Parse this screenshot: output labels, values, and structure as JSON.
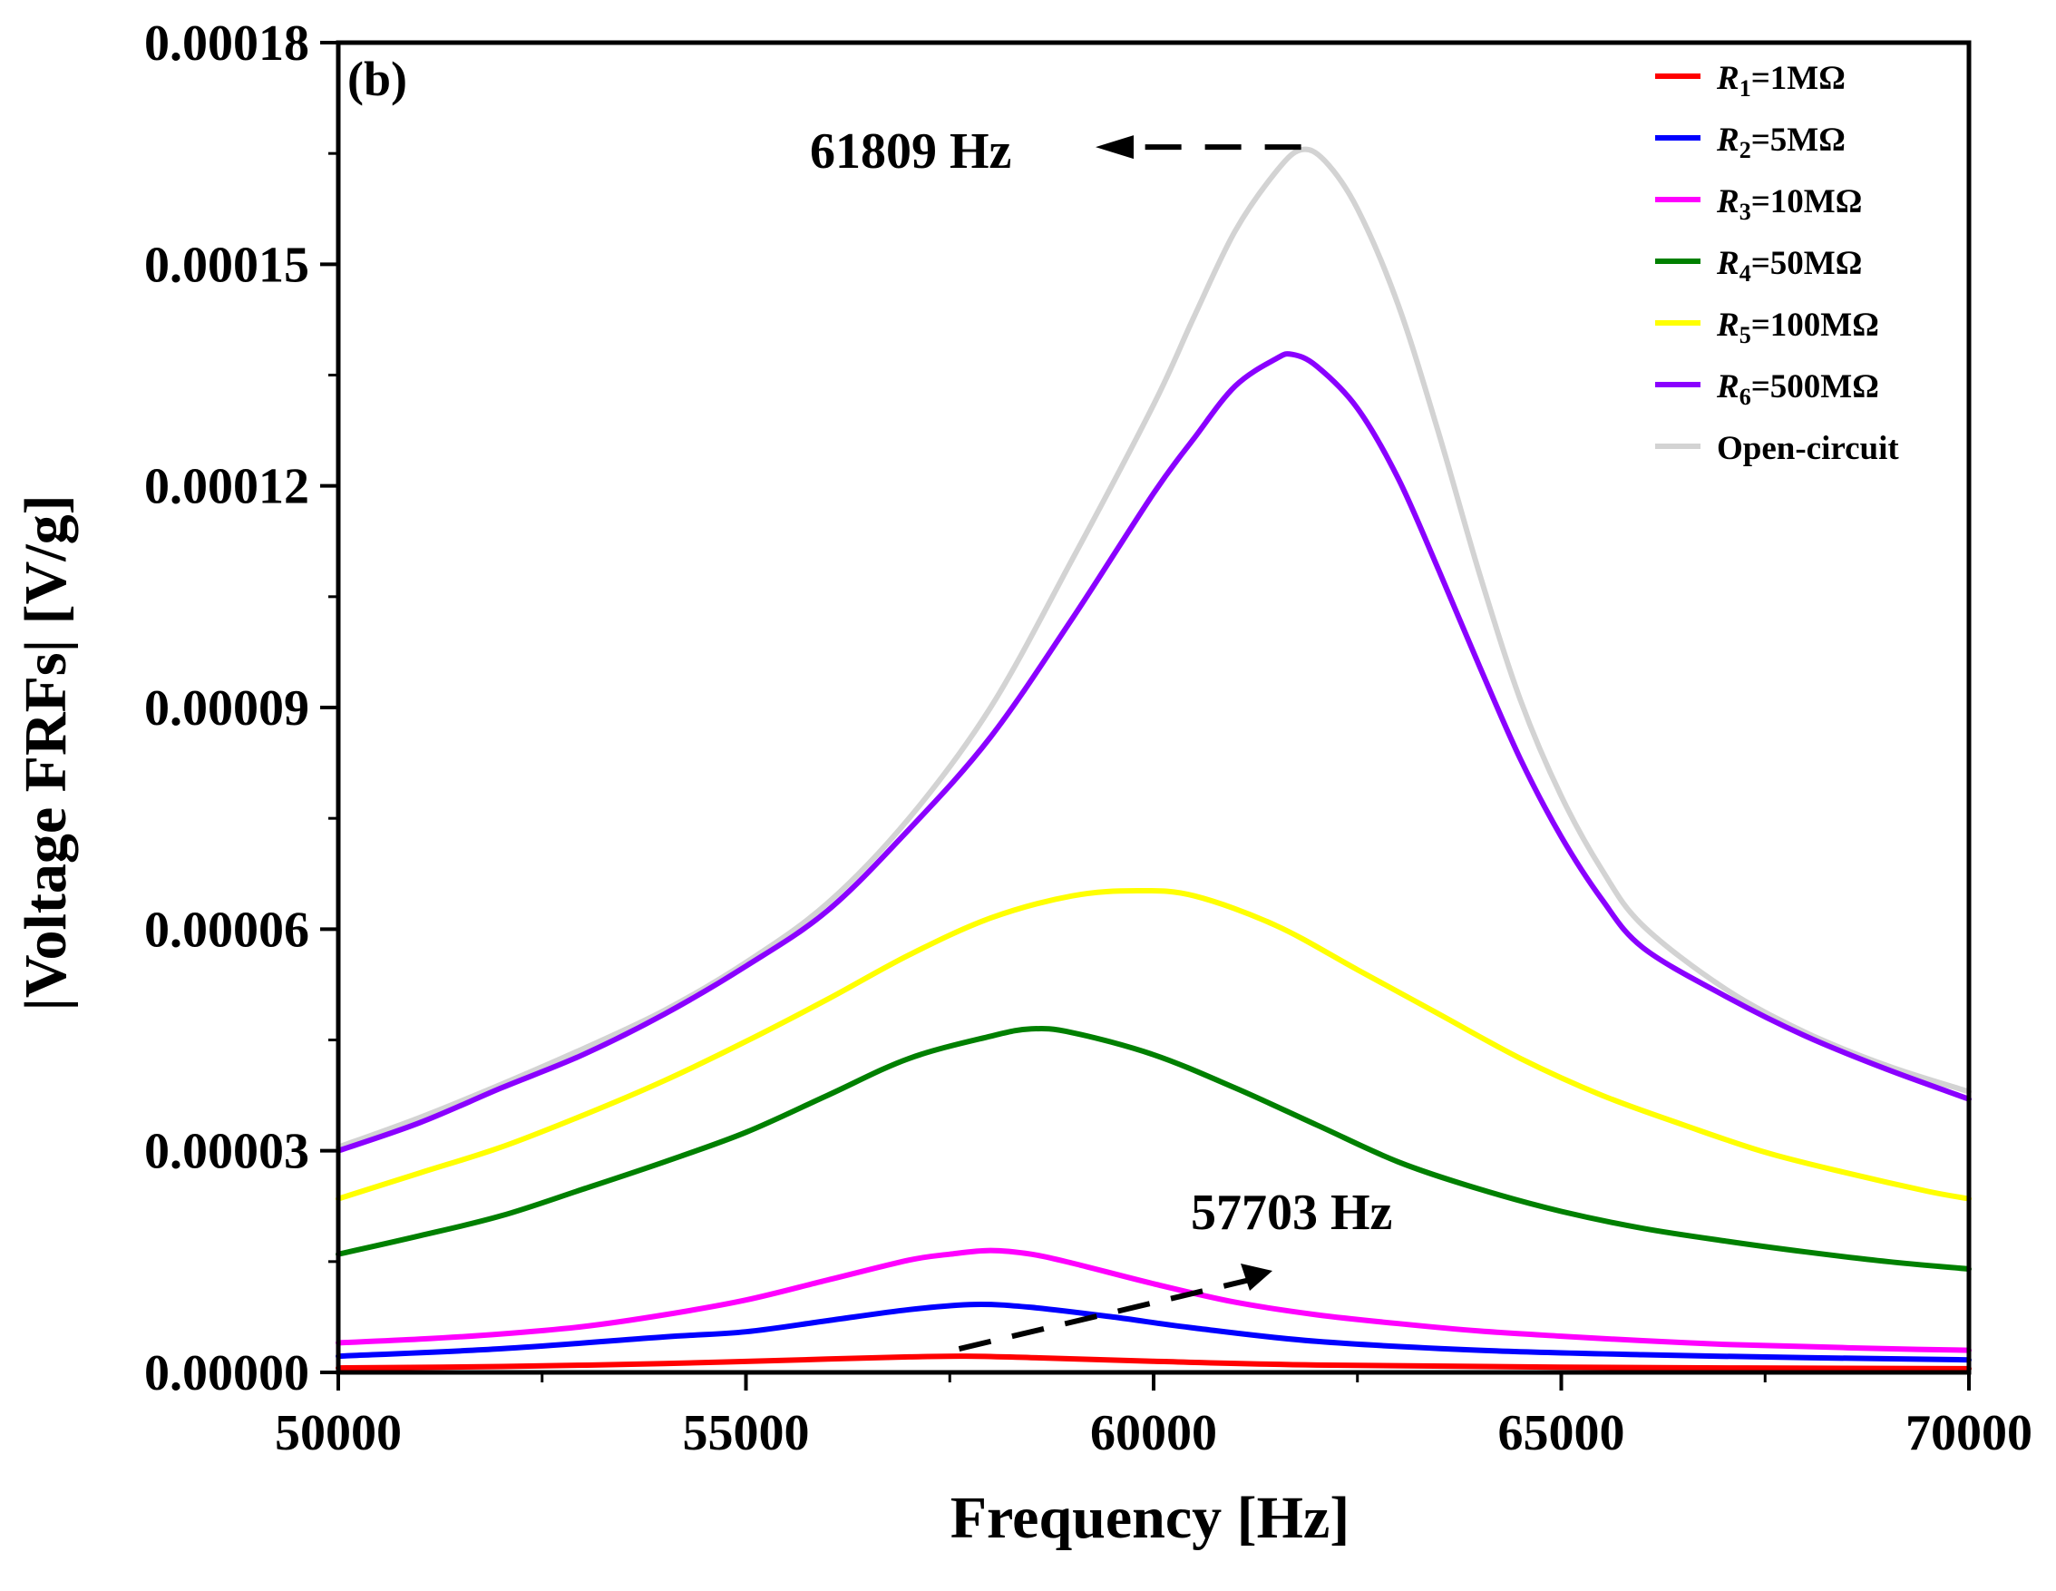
{
  "chart_data": {
    "type": "line",
    "panel_label": "(b)",
    "xlabel": "Frequency [Hz]",
    "ylabel": "|Voltage FRFs| [V/g]",
    "xlim": [
      50000,
      70000
    ],
    "ylim": [
      0,
      0.00018
    ],
    "xticks": [
      50000,
      55000,
      60000,
      65000,
      70000
    ],
    "xtick_labels": [
      "50000",
      "55000",
      "60000",
      "65000",
      "70000"
    ],
    "yticks": [
      0,
      3e-05,
      6e-05,
      9e-05,
      0.00012,
      0.00015,
      0.00018
    ],
    "ytick_labels": [
      "0.00000",
      "0.00003",
      "0.00006",
      "0.00009",
      "0.00012",
      "0.00015",
      "0.00018"
    ],
    "legend_position": "top-right",
    "series": [
      {
        "sym": "R",
        "sub": "1",
        "rest": "=1MΩ",
        "color": "#ff0000",
        "points": [
          [
            50000,
            6e-07
          ],
          [
            52000,
            8e-07
          ],
          [
            54000,
            1.2e-06
          ],
          [
            56000,
            1.8e-06
          ],
          [
            57000,
            2.1e-06
          ],
          [
            57703,
            2.2e-06
          ],
          [
            58500,
            2e-06
          ],
          [
            60000,
            1.5e-06
          ],
          [
            62000,
            1e-06
          ],
          [
            65000,
            7e-07
          ],
          [
            70000,
            5e-07
          ]
        ]
      },
      {
        "sym": "R",
        "sub": "2",
        "rest": "=5MΩ",
        "color": "#0000ff",
        "points": [
          [
            50000,
            2.2e-06
          ],
          [
            52000,
            3.2e-06
          ],
          [
            54000,
            4.8e-06
          ],
          [
            55000,
            5.5e-06
          ],
          [
            56000,
            7e-06
          ],
          [
            57000,
            8.5e-06
          ],
          [
            57800,
            9.2e-06
          ],
          [
            58500,
            8.8e-06
          ],
          [
            59500,
            7.5e-06
          ],
          [
            60500,
            6e-06
          ],
          [
            62000,
            4.2e-06
          ],
          [
            64000,
            3e-06
          ],
          [
            66000,
            2.4e-06
          ],
          [
            68000,
            2e-06
          ],
          [
            70000,
            1.7e-06
          ]
        ]
      },
      {
        "sym": "R",
        "sub": "3",
        "rest": "=10MΩ",
        "color": "#ff00ff",
        "points": [
          [
            50000,
            4e-06
          ],
          [
            51000,
            4.5e-06
          ],
          [
            52000,
            5.2e-06
          ],
          [
            53000,
            6.2e-06
          ],
          [
            54000,
            7.8e-06
          ],
          [
            55000,
            9.8e-06
          ],
          [
            56000,
            1.25e-05
          ],
          [
            57000,
            1.52e-05
          ],
          [
            57500,
            1.6e-05
          ],
          [
            58000,
            1.65e-05
          ],
          [
            58500,
            1.6e-05
          ],
          [
            59000,
            1.48e-05
          ],
          [
            60000,
            1.2e-05
          ],
          [
            61000,
            9.5e-06
          ],
          [
            62000,
            7.8e-06
          ],
          [
            63000,
            6.6e-06
          ],
          [
            64000,
            5.6e-06
          ],
          [
            65000,
            4.9e-06
          ],
          [
            66000,
            4.3e-06
          ],
          [
            67000,
            3.8e-06
          ],
          [
            68000,
            3.5e-06
          ],
          [
            69000,
            3.2e-06
          ],
          [
            70000,
            3e-06
          ]
        ]
      },
      {
        "sym": "R",
        "sub": "4",
        "rest": "=50MΩ",
        "color": "#008000",
        "points": [
          [
            50000,
            1.6e-05
          ],
          [
            51000,
            1.85e-05
          ],
          [
            52000,
            2.12e-05
          ],
          [
            53000,
            2.48e-05
          ],
          [
            54000,
            2.85e-05
          ],
          [
            55000,
            3.25e-05
          ],
          [
            56000,
            3.75e-05
          ],
          [
            57000,
            4.25e-05
          ],
          [
            58000,
            4.55e-05
          ],
          [
            58500,
            4.65e-05
          ],
          [
            59000,
            4.6e-05
          ],
          [
            60000,
            4.3e-05
          ],
          [
            61000,
            3.85e-05
          ],
          [
            62000,
            3.35e-05
          ],
          [
            63000,
            2.85e-05
          ],
          [
            64000,
            2.48e-05
          ],
          [
            65000,
            2.18e-05
          ],
          [
            66000,
            1.95e-05
          ],
          [
            67000,
            1.78e-05
          ],
          [
            68000,
            1.63e-05
          ],
          [
            69000,
            1.5e-05
          ],
          [
            70000,
            1.4e-05
          ]
        ]
      },
      {
        "sym": "R",
        "sub": "5",
        "rest": "=100MΩ",
        "color": "#ffff00",
        "points": [
          [
            50000,
            2.35e-05
          ],
          [
            51000,
            2.7e-05
          ],
          [
            52000,
            3.05e-05
          ],
          [
            53000,
            3.48e-05
          ],
          [
            54000,
            3.95e-05
          ],
          [
            55000,
            4.48e-05
          ],
          [
            56000,
            5.05e-05
          ],
          [
            57000,
            5.65e-05
          ],
          [
            58000,
            6.15e-05
          ],
          [
            59000,
            6.45e-05
          ],
          [
            59800,
            6.52e-05
          ],
          [
            60500,
            6.45e-05
          ],
          [
            61500,
            6.05e-05
          ],
          [
            62500,
            5.45e-05
          ],
          [
            63500,
            4.85e-05
          ],
          [
            64500,
            4.25e-05
          ],
          [
            65500,
            3.75e-05
          ],
          [
            66500,
            3.35e-05
          ],
          [
            67500,
            2.98e-05
          ],
          [
            68500,
            2.7e-05
          ],
          [
            69500,
            2.45e-05
          ],
          [
            70000,
            2.35e-05
          ]
        ]
      },
      {
        "sym": "R",
        "sub": "6",
        "rest": "=500MΩ",
        "color": "#8a00ff",
        "points": [
          [
            50000,
            3e-05
          ],
          [
            51000,
            3.38e-05
          ],
          [
            52000,
            3.85e-05
          ],
          [
            53000,
            4.3e-05
          ],
          [
            54000,
            4.85e-05
          ],
          [
            55000,
            5.5e-05
          ],
          [
            56000,
            6.25e-05
          ],
          [
            57000,
            7.35e-05
          ],
          [
            58000,
            8.6e-05
          ],
          [
            59000,
            0.000102
          ],
          [
            60000,
            0.000119
          ],
          [
            60500,
            0.0001265
          ],
          [
            61000,
            0.0001335
          ],
          [
            61500,
            0.0001372
          ],
          [
            61700,
            0.0001378
          ],
          [
            62000,
            0.0001362
          ],
          [
            62500,
            0.0001305
          ],
          [
            63000,
            0.000121
          ],
          [
            63500,
            0.0001085
          ],
          [
            64000,
            9.55e-05
          ],
          [
            64500,
            8.3e-05
          ],
          [
            65000,
            7.25e-05
          ],
          [
            65500,
            6.4e-05
          ],
          [
            66000,
            5.75e-05
          ],
          [
            67000,
            5.1e-05
          ],
          [
            68000,
            4.55e-05
          ],
          [
            69000,
            4.1e-05
          ],
          [
            70000,
            3.7e-05
          ]
        ]
      },
      {
        "sym": "",
        "sub": "",
        "rest": "Open-circuit",
        "color": "#d3d3d3",
        "points": [
          [
            50000,
            3.05e-05
          ],
          [
            51000,
            3.45e-05
          ],
          [
            52000,
            3.9e-05
          ],
          [
            53000,
            4.38e-05
          ],
          [
            54000,
            4.9e-05
          ],
          [
            55000,
            5.55e-05
          ],
          [
            56000,
            6.35e-05
          ],
          [
            57000,
            7.5e-05
          ],
          [
            58000,
            9e-05
          ],
          [
            59000,
            0.00011
          ],
          [
            60000,
            0.000131
          ],
          [
            60500,
            0.000143
          ],
          [
            61000,
            0.0001545
          ],
          [
            61500,
            0.0001625
          ],
          [
            61809,
            0.0001655
          ],
          [
            62100,
            0.000164
          ],
          [
            62500,
            0.0001575
          ],
          [
            63000,
            0.0001445
          ],
          [
            63500,
            0.000127
          ],
          [
            64000,
            0.000108
          ],
          [
            64500,
            9.1e-05
          ],
          [
            65000,
            7.8e-05
          ],
          [
            65500,
            6.8e-05
          ],
          [
            66000,
            6.05e-05
          ],
          [
            67000,
            5.2e-05
          ],
          [
            68000,
            4.6e-05
          ],
          [
            69000,
            4.15e-05
          ],
          [
            70000,
            3.8e-05
          ]
        ]
      }
    ],
    "annotations": [
      {
        "text": "61809 Hz",
        "x": 61809,
        "y": 0.0001655,
        "direction": "left"
      },
      {
        "text": "57703 Hz",
        "x": 57703,
        "y": 2.2e-06,
        "direction": "up-right"
      }
    ]
  }
}
